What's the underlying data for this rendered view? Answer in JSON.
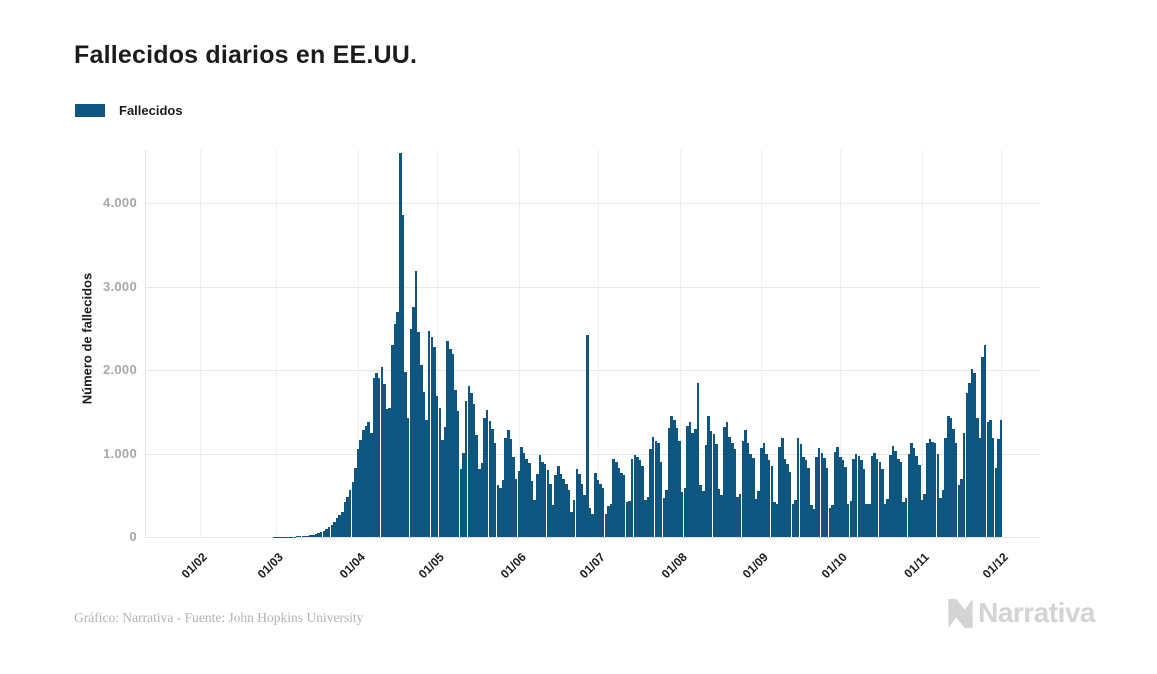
{
  "header": {
    "title": "Fallecidos diarios en EE.UU."
  },
  "legend": {
    "label": "Fallecidos",
    "swatch_color": "#0e5680"
  },
  "footer": {
    "credit": "Gráfico: Narrativa - Fuente: John Hopkins University",
    "logo_text": "Narrativa"
  },
  "colors": {
    "bar": "#0e5680",
    "title_text": "#1c1c1c",
    "axis_tick_text": "#a8a8a8",
    "x_tick_text": "#1b1b1b",
    "gridline": "#e7e7e7",
    "credit_text": "#b3b3b3",
    "logo_gray": "#d4d4d4",
    "background": "#ffffff"
  },
  "chart_data": {
    "type": "bar",
    "title": "Fallecidos diarios en EE.UU.",
    "series_name": "Fallecidos",
    "xlabel": "",
    "ylabel": "Número de fallecidos",
    "ylim": [
      0,
      4600
    ],
    "grid": true,
    "legend_position": "top-left",
    "granularity": "daily",
    "start_date": "2020-02-01",
    "end_date": "2020-12-01",
    "y_ticks": [
      {
        "value": 0,
        "label": "0"
      },
      {
        "value": 1000,
        "label": "1.000"
      },
      {
        "value": 2000,
        "label": "2.000"
      },
      {
        "value": 3000,
        "label": "3.000"
      },
      {
        "value": 4000,
        "label": "4.000"
      }
    ],
    "x_ticks": [
      {
        "label": "01/02",
        "day": 0
      },
      {
        "label": "01/03",
        "day": 29
      },
      {
        "label": "01/04",
        "day": 60
      },
      {
        "label": "01/05",
        "day": 90
      },
      {
        "label": "01/06",
        "day": 121
      },
      {
        "label": "01/07",
        "day": 151
      },
      {
        "label": "01/08",
        "day": 182
      },
      {
        "label": "01/09",
        "day": 213
      },
      {
        "label": "01/10",
        "day": 243
      },
      {
        "label": "01/11",
        "day": 274
      },
      {
        "label": "01/12",
        "day": 304
      }
    ],
    "values": [
      0,
      0,
      0,
      0,
      0,
      0,
      0,
      0,
      0,
      0,
      0,
      0,
      0,
      0,
      0,
      0,
      0,
      0,
      0,
      0,
      0,
      0,
      0,
      0,
      0,
      0,
      0,
      0,
      1,
      1,
      2,
      4,
      3,
      2,
      4,
      3,
      5,
      6,
      7,
      8,
      10,
      12,
      18,
      25,
      34,
      46,
      59,
      68,
      95,
      117,
      145,
      183,
      229,
      268,
      305,
      420,
      480,
      560,
      660,
      830,
      1050,
      1160,
      1280,
      1330,
      1380,
      1250,
      1900,
      1970,
      1900,
      2030,
      1830,
      1530,
      1540,
      2300,
      2550,
      2700,
      4600,
      3860,
      1980,
      1430,
      2490,
      2750,
      3180,
      2450,
      2060,
      1740,
      1400,
      2470,
      2390,
      2280,
      1690,
      1540,
      1160,
      1320,
      2350,
      2250,
      2190,
      1760,
      1510,
      820,
      1010,
      1630,
      1810,
      1720,
      1590,
      1220,
      820,
      890,
      1430,
      1520,
      1390,
      1290,
      1130,
      620,
      590,
      680,
      1190,
      1280,
      1170,
      960,
      700,
      790,
      1080,
      1010,
      930,
      890,
      670,
      440,
      750,
      980,
      900,
      870,
      800,
      640,
      380,
      740,
      850,
      750,
      700,
      640,
      560,
      300,
      440,
      810,
      760,
      640,
      500,
      2420,
      350,
      280,
      770,
      680,
      640,
      590,
      270,
      370,
      390,
      930,
      900,
      830,
      770,
      740,
      420,
      430,
      940,
      980,
      960,
      920,
      850,
      440,
      480,
      1050,
      1200,
      1150,
      1130,
      900,
      470,
      560,
      1300,
      1450,
      1400,
      1300,
      1150,
      540,
      590,
      1330,
      1380,
      1250,
      1290,
      1850,
      620,
      550,
      1100,
      1450,
      1270,
      1230,
      1110,
      580,
      500,
      1320,
      1380,
      1200,
      1130,
      1050,
      480,
      520,
      1150,
      1280,
      1120,
      1000,
      950,
      460,
      550,
      1060,
      1120,
      990,
      920,
      850,
      420,
      390,
      1080,
      1180,
      940,
      880,
      780,
      400,
      440,
      1190,
      1110,
      960,
      920,
      830,
      380,
      330,
      960,
      1060,
      1010,
      950,
      830,
      350,
      380,
      1020,
      1080,
      960,
      920,
      840,
      390,
      430,
      940,
      990,
      970,
      920,
      810,
      400,
      390,
      970,
      1010,
      930,
      900,
      810,
      390,
      450,
      980,
      1090,
      1030,
      940,
      900,
      420,
      470,
      990,
      1120,
      1060,
      970,
      860,
      440,
      510,
      1130,
      1170,
      1140,
      1120,
      1000,
      470,
      560,
      1190,
      1450,
      1420,
      1290,
      1130,
      620,
      700,
      1250,
      1720,
      1840,
      2010,
      1960,
      1430,
      1180,
      2150,
      2300,
      1380,
      1400,
      1190,
      830,
      1170,
      1400
    ]
  }
}
